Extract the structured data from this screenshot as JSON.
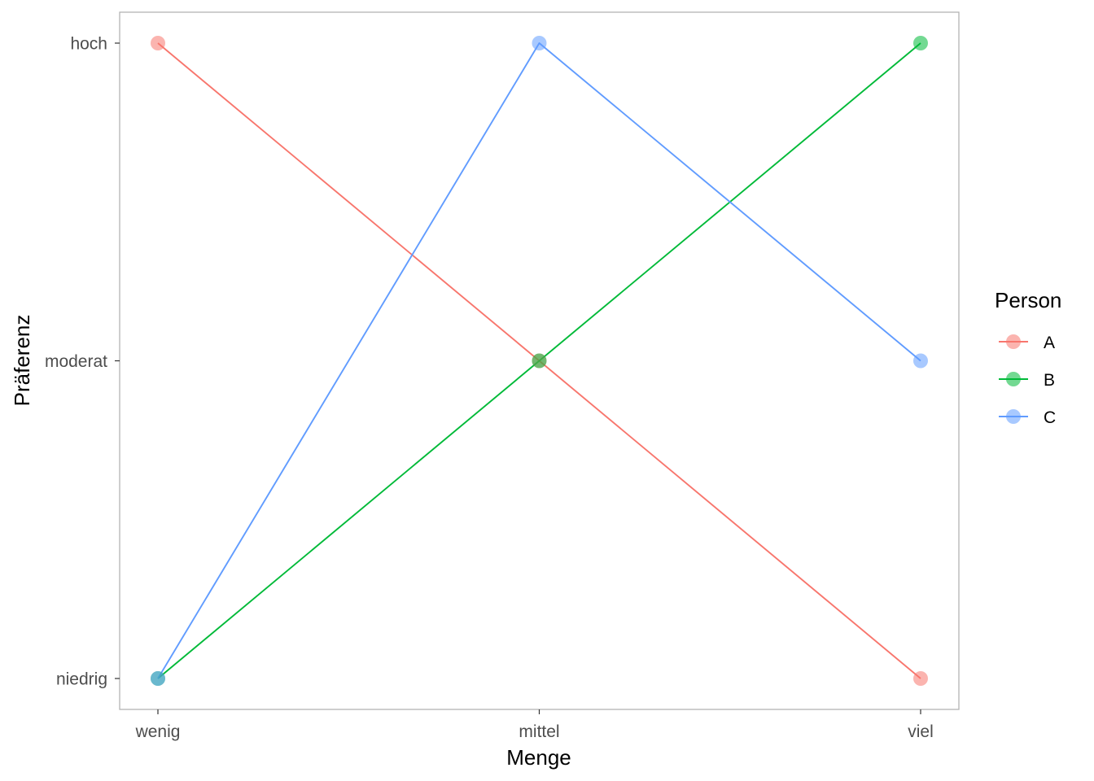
{
  "chart_data": {
    "type": "line",
    "xlabel": "Menge",
    "ylabel": "Präferenz",
    "categories": [
      "wenig",
      "mittel",
      "viel"
    ],
    "y_levels": [
      "niedrig",
      "moderat",
      "hoch"
    ],
    "grid": false,
    "legend": {
      "title": "Person",
      "placement": "right"
    },
    "series": [
      {
        "name": "A",
        "color": "#F8766D",
        "values": [
          "hoch",
          "moderat",
          "niedrig"
        ]
      },
      {
        "name": "B",
        "color": "#00BA38",
        "values": [
          "niedrig",
          "moderat",
          "hoch"
        ]
      },
      {
        "name": "C",
        "color": "#619CFF",
        "values": [
          "niedrig",
          "hoch",
          "moderat"
        ]
      }
    ]
  }
}
